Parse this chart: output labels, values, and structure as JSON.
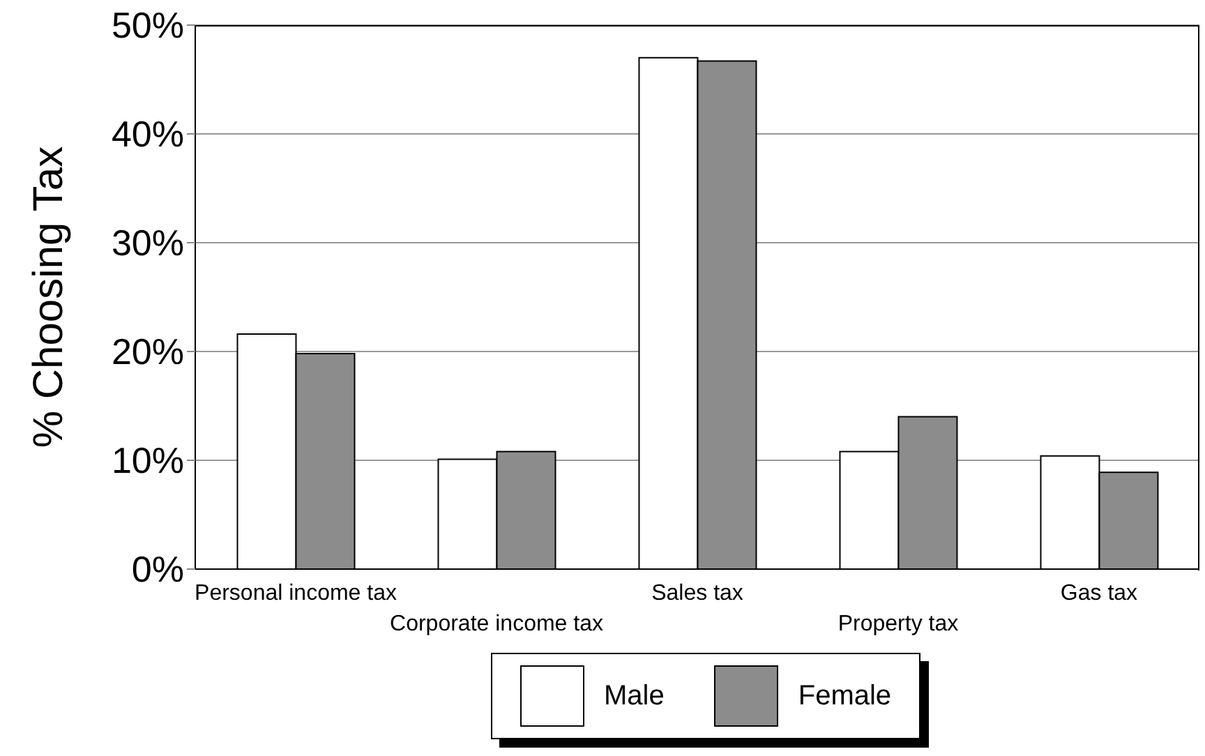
{
  "chart_data": {
    "type": "bar",
    "ylabel": "% Choosing Tax",
    "categories": [
      "Personal income tax",
      "Corporate income tax",
      "Sales tax",
      "Property tax",
      "Gas tax"
    ],
    "series": [
      {
        "name": "Male",
        "color": "#ffffff",
        "values": [
          21.6,
          10.1,
          47.0,
          10.8,
          10.4
        ]
      },
      {
        "name": "Female",
        "color": "#8c8c8c",
        "values": [
          19.8,
          10.8,
          46.7,
          14.0,
          8.9
        ]
      }
    ],
    "ylim": [
      0,
      50
    ],
    "yticks": [
      {
        "value": 0,
        "label": "0%"
      },
      {
        "value": 10,
        "label": "10%"
      },
      {
        "value": 20,
        "label": "20%"
      },
      {
        "value": 30,
        "label": "30%"
      },
      {
        "value": 40,
        "label": "40%"
      },
      {
        "value": 50,
        "label": "50%"
      }
    ],
    "grid": "y",
    "legend": "bottom"
  }
}
